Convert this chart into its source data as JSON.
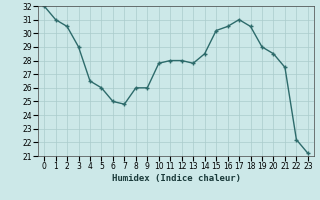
{
  "x": [
    0,
    1,
    2,
    3,
    4,
    5,
    6,
    7,
    8,
    9,
    10,
    11,
    12,
    13,
    14,
    15,
    16,
    17,
    18,
    19,
    20,
    21,
    22,
    23
  ],
  "y": [
    32,
    31,
    30.5,
    29,
    26.5,
    26,
    25,
    24.8,
    26,
    26,
    27.8,
    28,
    28,
    27.8,
    28.5,
    30.2,
    30.5,
    31,
    30.5,
    29,
    28.5,
    27.5,
    22.2,
    21.2
  ],
  "line_color": "#2d6b6b",
  "marker": "+",
  "bg_color": "#cce8e8",
  "grid_color": "#aacccc",
  "xlabel": "Humidex (Indice chaleur)",
  "ylim": [
    21,
    32
  ],
  "xlim": [
    -0.5,
    23.5
  ],
  "yticks": [
    21,
    22,
    23,
    24,
    25,
    26,
    27,
    28,
    29,
    30,
    31,
    32
  ],
  "xticks": [
    0,
    1,
    2,
    3,
    4,
    5,
    6,
    7,
    8,
    9,
    10,
    11,
    12,
    13,
    14,
    15,
    16,
    17,
    18,
    19,
    20,
    21,
    22,
    23
  ],
  "tick_label_fontsize": 5.5,
  "xlabel_fontsize": 6.5,
  "line_width": 1.0,
  "marker_size": 3.5
}
